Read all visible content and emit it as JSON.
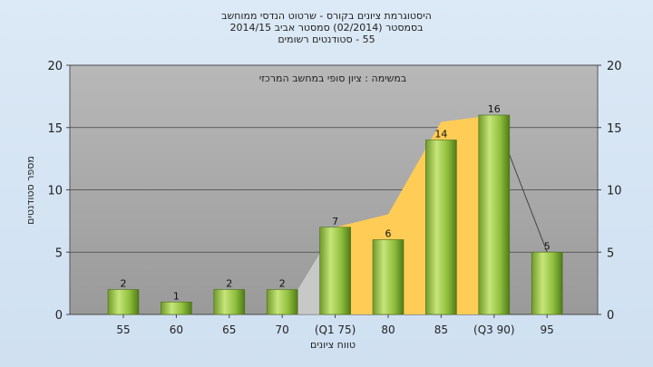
{
  "chart_data": {
    "type": "bar",
    "title_lines": [
      "היסטוגרמת ציונים בקורס - שרטוט הנדסי ממוחשב",
      "בסמסטר  (02/2014)  סמסטר אביב 2014/15",
      "55 - סטודנטים רשומים"
    ],
    "annotation": "במשימה : ציון סופי במחשב המרכזי",
    "xlabel": "טווח ציונים",
    "ylabel": "מספר סטודנטים",
    "categories": [
      "55",
      "60",
      "65",
      "70",
      "(Q1 75)",
      "80",
      "85",
      "(Q3 90)",
      "95"
    ],
    "values": [
      2,
      1,
      2,
      2,
      7,
      6,
      14,
      16,
      5
    ],
    "data_labels": [
      "2",
      "1",
      "2",
      "2",
      "7",
      "6",
      "14",
      "16",
      "5"
    ],
    "ylim": [
      0,
      20
    ],
    "yticks": [
      "0",
      "5",
      "10",
      "15",
      "20"
    ],
    "grid": true,
    "colors": {
      "bar": "#8fbf3c",
      "band_quartile": "#ffcc55",
      "band_outer": "#c8c8c8",
      "plot_bg": "#a9a9a9"
    }
  }
}
